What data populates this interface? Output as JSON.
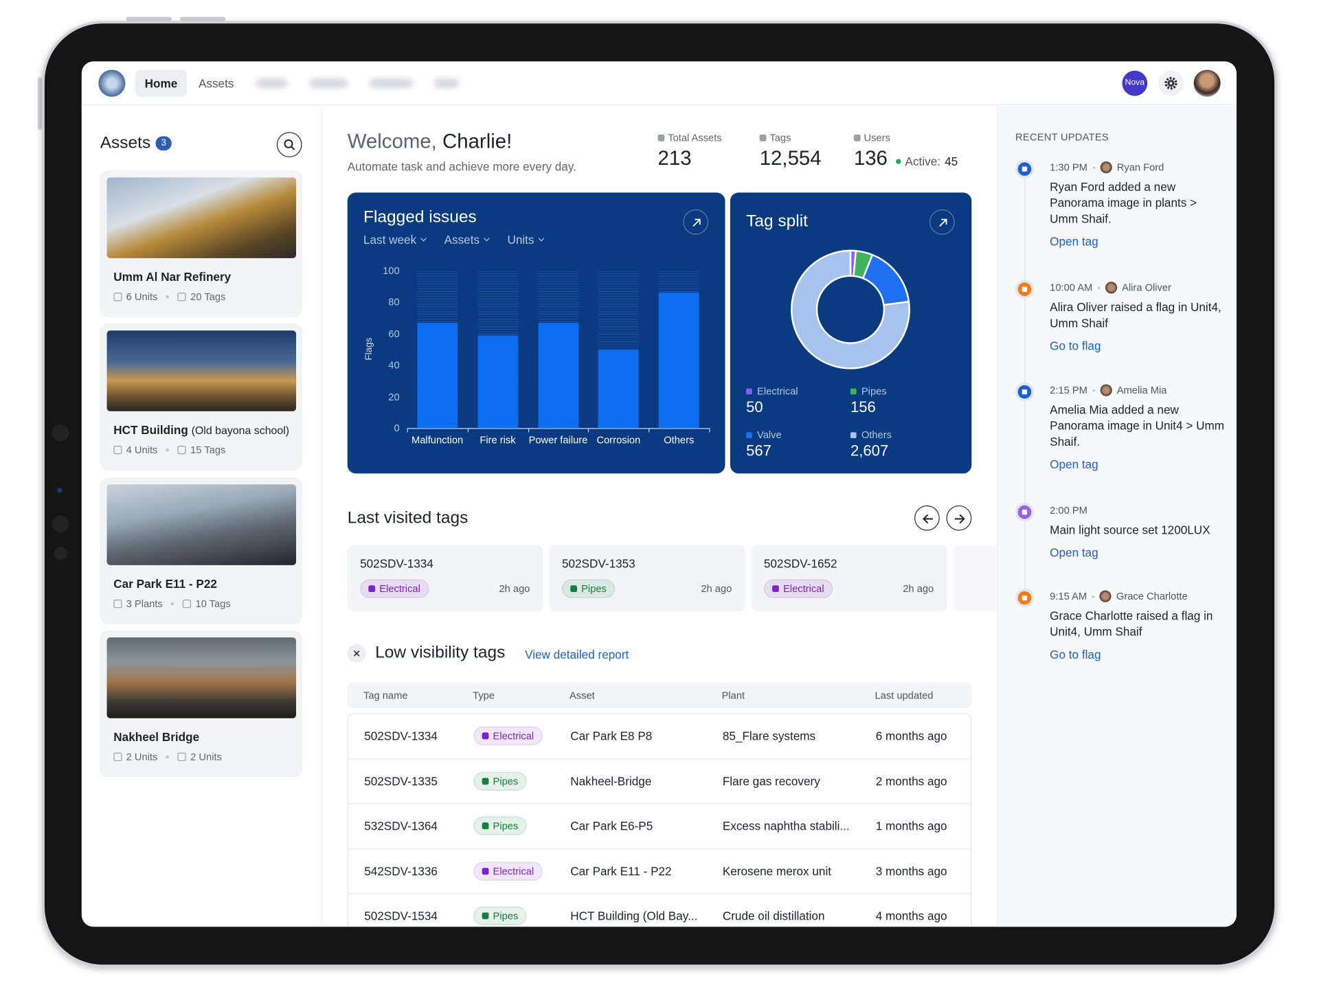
{
  "nav": {
    "items": [
      "Home",
      "Assets"
    ],
    "avatar": "Nova"
  },
  "assets": {
    "title": "Assets",
    "count": "3",
    "items": [
      {
        "name": "Umm Al Nar Refinery",
        "stats": [
          "6 Units",
          "20 Tags"
        ]
      },
      {
        "name": "HCT Building",
        "note": "(Old bayona school)",
        "stats": [
          "4 Units",
          "15 Tags"
        ]
      },
      {
        "name": "Car Park E11 - P22",
        "stats": [
          "3 Plants",
          "10 Tags"
        ]
      },
      {
        "name": "Nakheel Bridge",
        "stats": [
          "2 Units",
          "2 Units"
        ]
      }
    ]
  },
  "welcome": {
    "greeting": "Welcome,",
    "name": "Charlie!",
    "subtitle": "Automate task and achieve more every day."
  },
  "stats": {
    "items": [
      {
        "label": "Total Assets",
        "value": "213"
      },
      {
        "label": "Tags",
        "value": "12,554"
      },
      {
        "label": "Users",
        "value": "136"
      }
    ],
    "active_label": "Active:",
    "active_value": "45"
  },
  "flagged_issues": {
    "title": "Flagged issues",
    "filters": [
      "Last week",
      "Assets",
      "Units"
    ],
    "chart": {
      "type": "bar",
      "y_label": "Flags",
      "categories": [
        "Malfunction",
        "Fire risk",
        "Power failure",
        "Corrosion",
        "Others"
      ],
      "values": [
        67,
        59,
        67,
        50,
        86
      ],
      "color": "#0b6ef3",
      "ylim": [
        0,
        100
      ],
      "yticks": [
        0,
        20,
        40,
        60,
        80,
        100
      ]
    }
  },
  "tag_split": {
    "title": "Tag split",
    "chart": {
      "type": "donut",
      "categories": [
        "Electrical",
        "Pipes",
        "Valve",
        "Others"
      ],
      "values": [
        50,
        156,
        567,
        2607
      ],
      "value_labels": [
        "50",
        "156",
        "567",
        "2,607"
      ],
      "colors": [
        "#8b5cf6",
        "#3fb35e",
        "#1f6ff0",
        "#a8c2ee"
      ]
    }
  },
  "last_visited": {
    "title": "Last visited tags",
    "items": [
      {
        "tag": "502SDV-1334",
        "type": "Electrical",
        "time": "2h ago"
      },
      {
        "tag": "502SDV-1353",
        "type": "Pipes",
        "time": "2h ago"
      },
      {
        "tag": "502SDV-1652",
        "type": "Electrical",
        "time": "2h ago"
      }
    ]
  },
  "type_colors": {
    "Electrical": "#7e22ce",
    "Pipes": "#15803d"
  },
  "low_visibility": {
    "title": "Low visibility tags",
    "link": "View detailed report",
    "columns": [
      "Tag name",
      "Type",
      "Asset",
      "Plant",
      "Last updated"
    ],
    "rows": [
      [
        "502SDV-1334",
        "Electrical",
        "Car Park E8 P8",
        "85_Flare systems",
        "6 months ago"
      ],
      [
        "502SDV-1335",
        "Pipes",
        "Nakheel-Bridge",
        "Flare gas recovery",
        "2 months ago"
      ],
      [
        "532SDV-1364",
        "Pipes",
        "Car Park E6-P5",
        "Excess naphtha stabili...",
        "1 months ago"
      ],
      [
        "542SDV-1336",
        "Electrical",
        "Car Park E11 - P22",
        "Kerosene merox unit",
        "3 months ago"
      ],
      [
        "502SDV-1534",
        "Pipes",
        "HCT Building (Old Bay...",
        "Crude oil distillation",
        "4 months ago"
      ]
    ]
  },
  "recent_updates": {
    "title": "RECENT UPDATES",
    "items": [
      {
        "time": "1:30 PM",
        "user": "Ryan Ford",
        "text": "Ryan Ford added a new Panorama image in plants > Umm Shaif.",
        "action": "Open tag",
        "color": "#1d5fd1"
      },
      {
        "time": "10:00 AM",
        "user": "Alira Oliver",
        "text": "Alira Oliver raised a flag in Unit4, Umm Shaif",
        "action": "Go to flag",
        "color": "#f47b16"
      },
      {
        "time": "2:15 PM",
        "user": "Amelia Mia",
        "text": "Amelia Mia added a new Panorama image in Unit4 > Umm Shaif.",
        "action": "Open tag",
        "color": "#1d5fd1"
      },
      {
        "time": "2:00 PM",
        "text": "Main light source set 1200LUX",
        "action": "Open tag",
        "color": "#9b5de5"
      },
      {
        "time": "9:15 AM",
        "user": "Grace Charlotte",
        "text": "Grace Charlotte raised a flag in Unit4, Umm Shaif",
        "action": "Go to flag",
        "color": "#f47b16"
      }
    ]
  }
}
